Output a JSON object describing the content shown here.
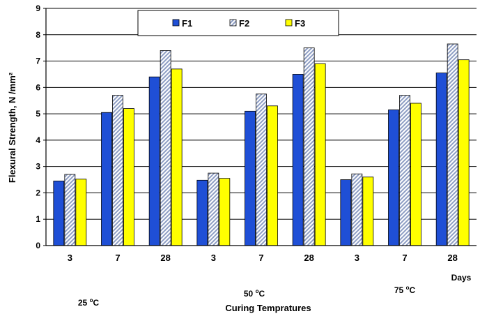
{
  "chart_data": {
    "type": "bar",
    "categories": [
      "3",
      "7",
      "28",
      "3",
      "7",
      "28",
      "3",
      "7",
      "28"
    ],
    "groups": [
      {
        "label": "25",
        "unit": "C"
      },
      {
        "label": "50",
        "unit": "C"
      },
      {
        "label": "75",
        "unit": "C"
      }
    ],
    "series": [
      {
        "name": "F1",
        "color": "#1f4fd6",
        "pattern": "solid",
        "values": [
          2.45,
          5.05,
          6.4,
          2.48,
          5.1,
          6.5,
          2.5,
          5.15,
          6.55
        ]
      },
      {
        "name": "F2",
        "color": "#b8c4e0",
        "pattern": "diagonal-hatch",
        "values": [
          2.7,
          5.7,
          7.4,
          2.75,
          5.75,
          7.5,
          2.72,
          5.7,
          7.65
        ]
      },
      {
        "name": "F3",
        "color": "#ffff00",
        "pattern": "solid",
        "values": [
          2.52,
          5.2,
          6.7,
          2.55,
          5.3,
          6.9,
          2.6,
          5.4,
          7.05
        ]
      }
    ],
    "xlabel": "Curing Tempratures",
    "xunit": "Days",
    "ylabel": "Flexural Strength,  N /mm²",
    "ylim": [
      0,
      9
    ],
    "yticks": [
      0,
      1,
      2,
      3,
      4,
      5,
      6,
      7,
      8,
      9
    ],
    "grid": true,
    "legend_position": "top"
  }
}
